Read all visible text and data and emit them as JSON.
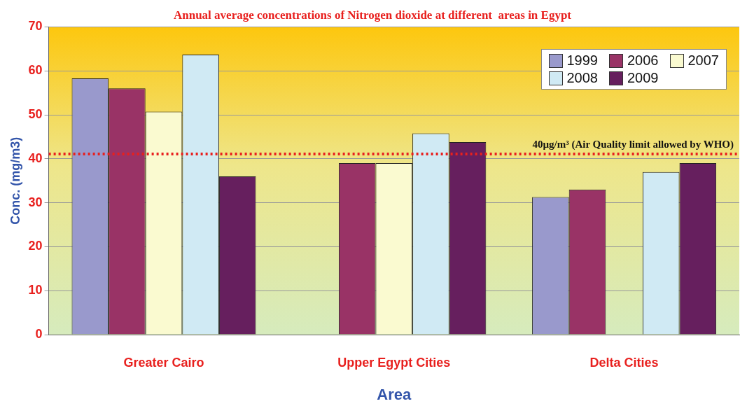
{
  "chart_data": {
    "type": "bar",
    "title": "Annual average concentrations of Nitrogen dioxide at different  areas in Egypt",
    "xlabel": "Area",
    "ylabel": "Conc. (mg/m3)",
    "categories": [
      "Greater Cairo",
      "Upper Egypt Cities",
      "Delta Cities"
    ],
    "series": [
      {
        "name": "1999",
        "color": "#9999cc",
        "values": [
          58.3,
          null,
          31.3
        ]
      },
      {
        "name": "2006",
        "color": "#993366",
        "values": [
          56,
          39,
          33
        ]
      },
      {
        "name": "2007",
        "color": "#fafad0",
        "values": [
          50.7,
          39,
          null
        ]
      },
      {
        "name": "2008",
        "color": "#d0eaf4",
        "values": [
          63.7,
          45.8,
          37
        ]
      },
      {
        "name": "2009",
        "color": "#661f5e",
        "values": [
          36,
          43.8,
          39
        ]
      }
    ],
    "ylim": [
      0,
      70
    ],
    "yticks": [
      0,
      10,
      20,
      30,
      40,
      50,
      60,
      70
    ],
    "grid": "y",
    "legend": "top right",
    "ref_lines": [
      {
        "axis": "y",
        "value": 41.1,
        "label": "40µg/m³ (Air Quality limit allowed by WHO)",
        "color": "#e8201e",
        "line_style": "dotted"
      }
    ]
  }
}
